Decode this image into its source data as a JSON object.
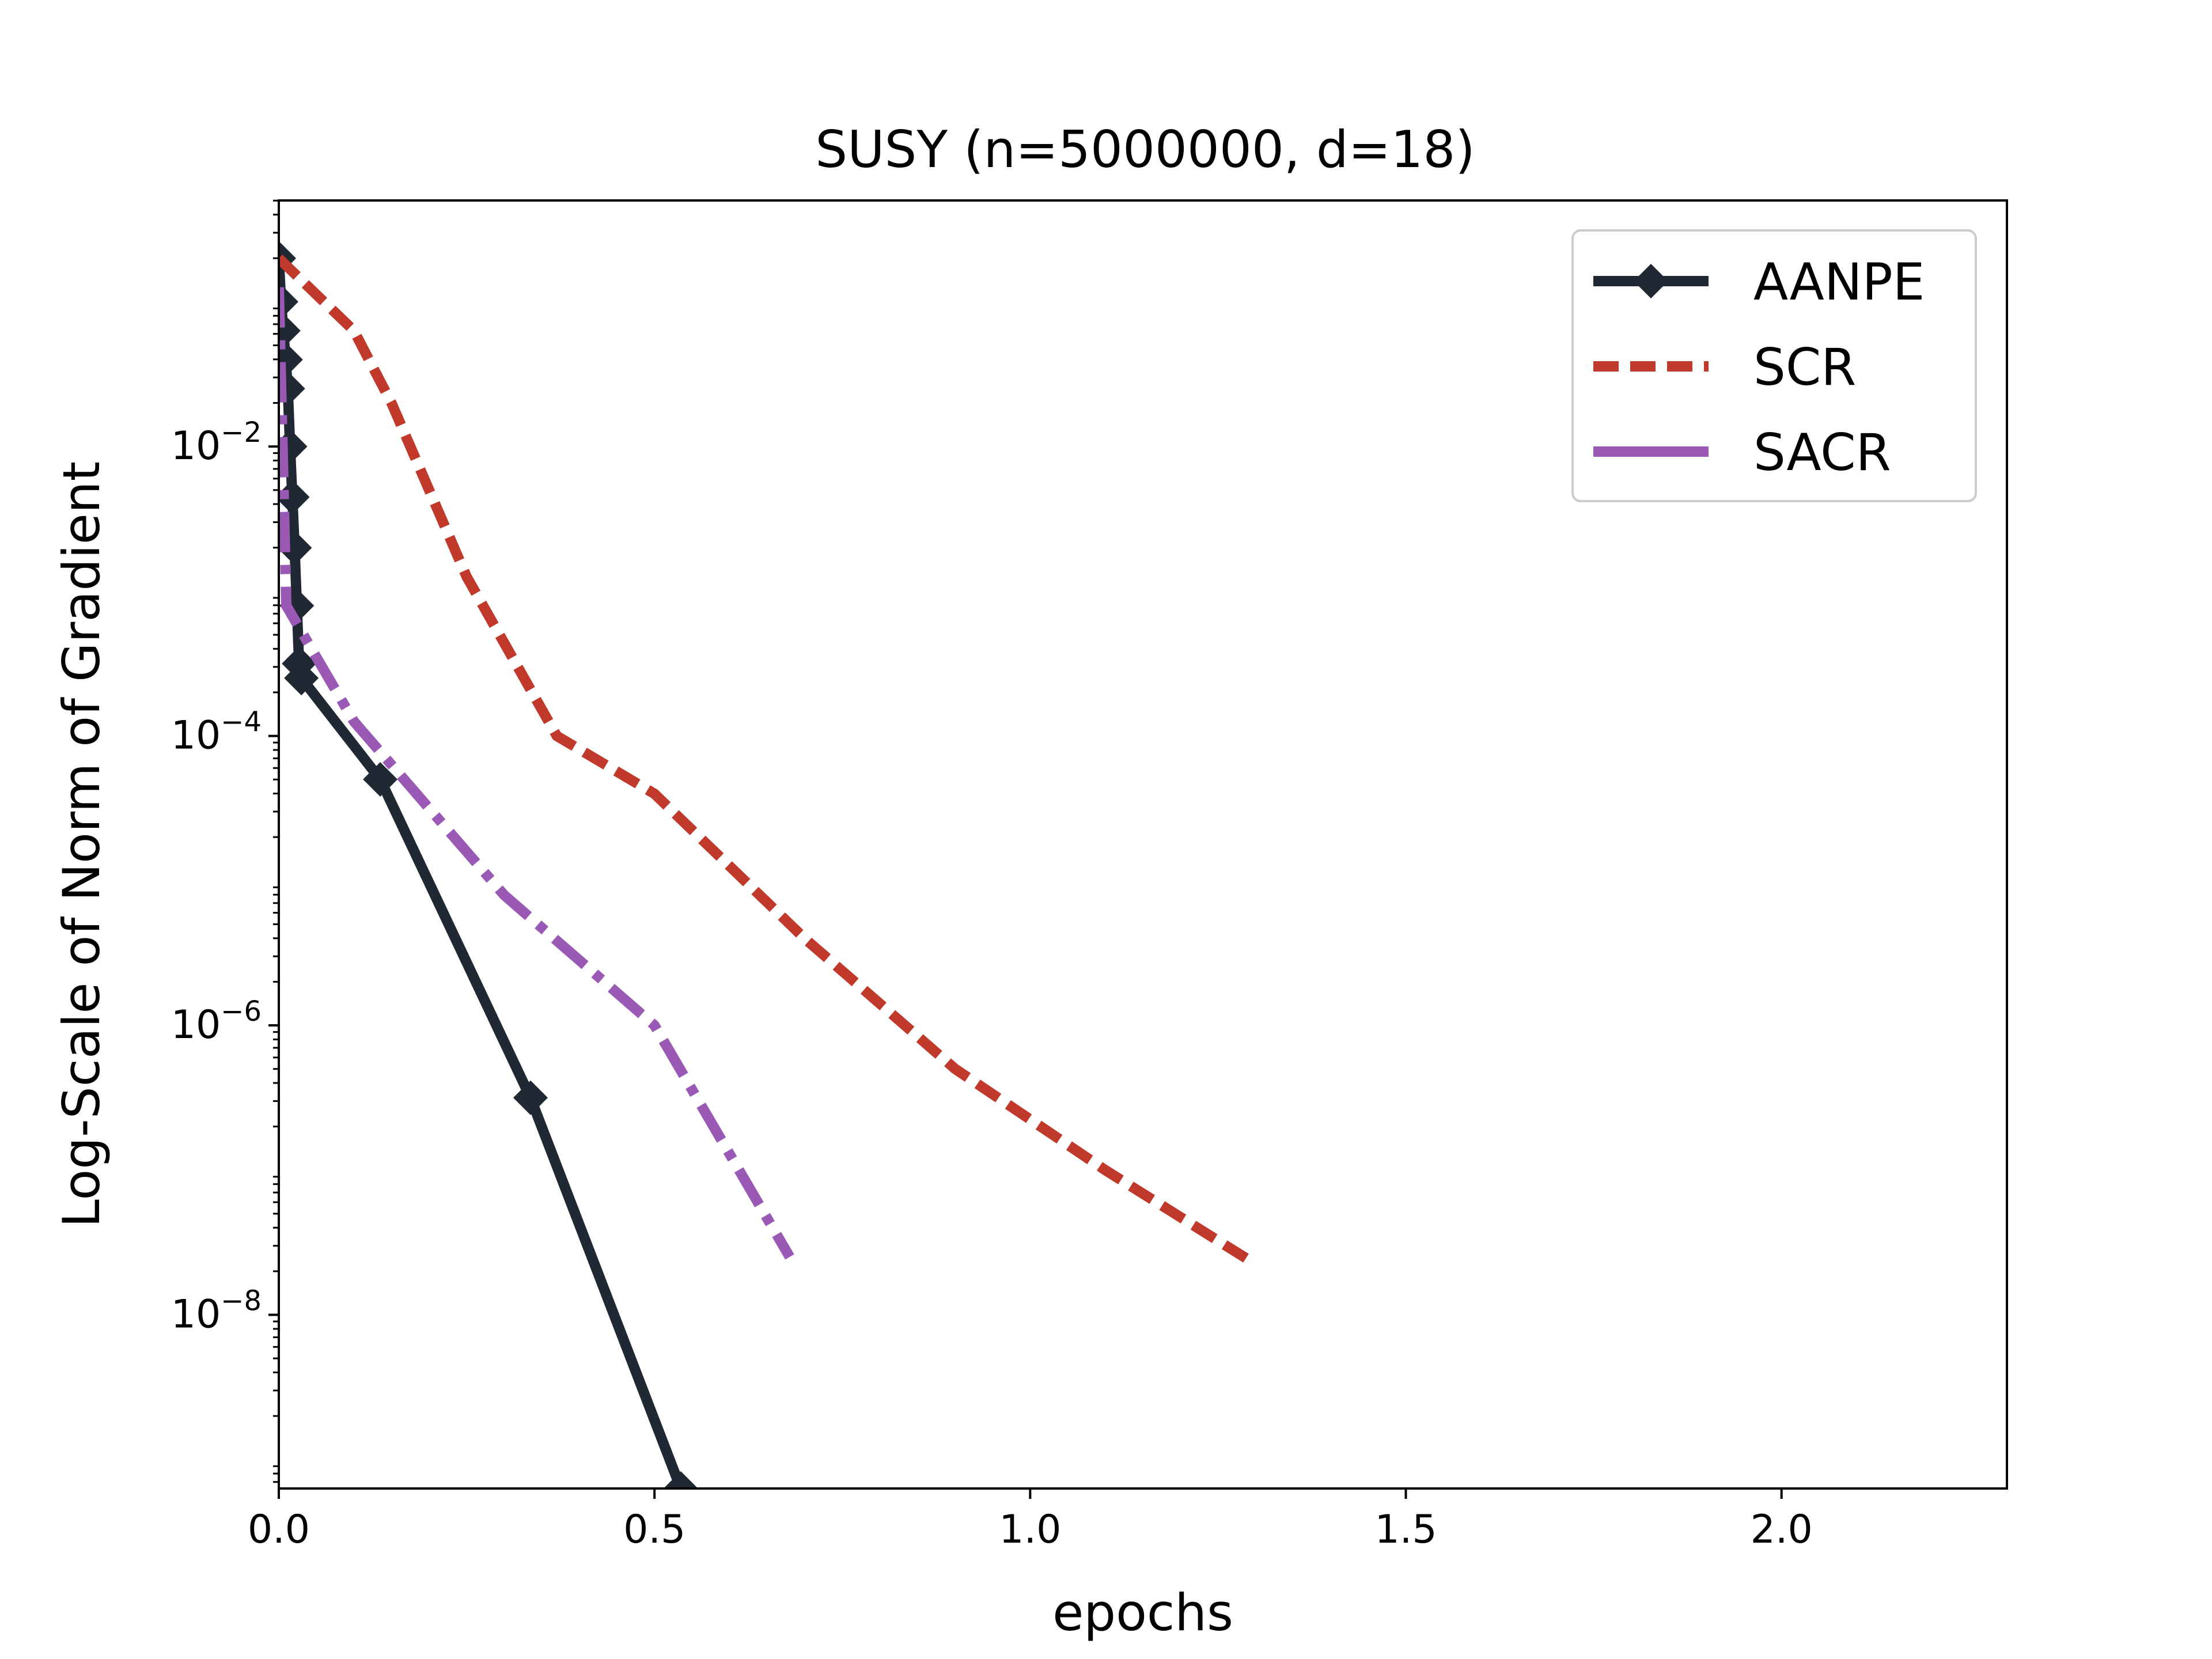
{
  "chart_data": {
    "type": "line",
    "title": "SUSY (n=5000000, d=18)",
    "xlabel": "epochs",
    "ylabel": "Log-Scale of Norm of Gradient",
    "xlim": [
      0,
      2.3
    ],
    "ylim_log10": [
      -9.2,
      -0.3
    ],
    "yscale": "log",
    "x_ticks": [
      {
        "value": 0.0,
        "label": "0.0"
      },
      {
        "value": 0.5,
        "label": "0.5"
      },
      {
        "value": 1.0,
        "label": "1.0"
      },
      {
        "value": 1.5,
        "label": "1.5"
      },
      {
        "value": 2.0,
        "label": "2.0"
      }
    ],
    "y_ticks": [
      {
        "log10": -2,
        "base": "10",
        "exp": "−2"
      },
      {
        "log10": -4,
        "base": "10",
        "exp": "−4"
      },
      {
        "log10": -6,
        "base": "10",
        "exp": "−6"
      },
      {
        "log10": -8,
        "base": "10",
        "exp": "−8"
      }
    ],
    "grid": false,
    "legend_position": "top-right",
    "series": [
      {
        "name": "AANPE",
        "color": "#1f2833",
        "style": "solid",
        "marker": "diamond",
        "x": [
          0,
          0.003,
          0.006,
          0.009,
          0.012,
          0.015,
          0.018,
          0.021,
          0.024,
          0.027,
          0.03,
          0.135,
          0.335,
          0.535
        ],
        "y_log10": [
          -0.7,
          -1.0,
          -1.2,
          -1.4,
          -1.6,
          -2.0,
          -2.35,
          -2.7,
          -3.1,
          -3.5,
          -3.6,
          -4.3,
          -6.5,
          -9.2
        ]
      },
      {
        "name": "SCR",
        "color": "#c0392b",
        "style": "dashed",
        "marker": "none",
        "x": [
          0,
          0.1,
          0.15,
          0.25,
          0.37,
          0.5,
          0.7,
          0.9,
          1.1,
          1.3
        ],
        "y_log10": [
          -0.7,
          -1.2,
          -1.7,
          -2.9,
          -4.0,
          -4.4,
          -5.4,
          -6.3,
          -7.0,
          -7.65
        ]
      },
      {
        "name": "SACR",
        "color": "#9b59b6",
        "style": "dashdot",
        "marker": "none",
        "x": [
          0,
          0.01,
          0.1,
          0.3,
          0.5,
          0.68
        ],
        "y_log10": [
          -0.9,
          -3.1,
          -3.9,
          -5.1,
          -6.0,
          -7.6
        ]
      }
    ]
  }
}
